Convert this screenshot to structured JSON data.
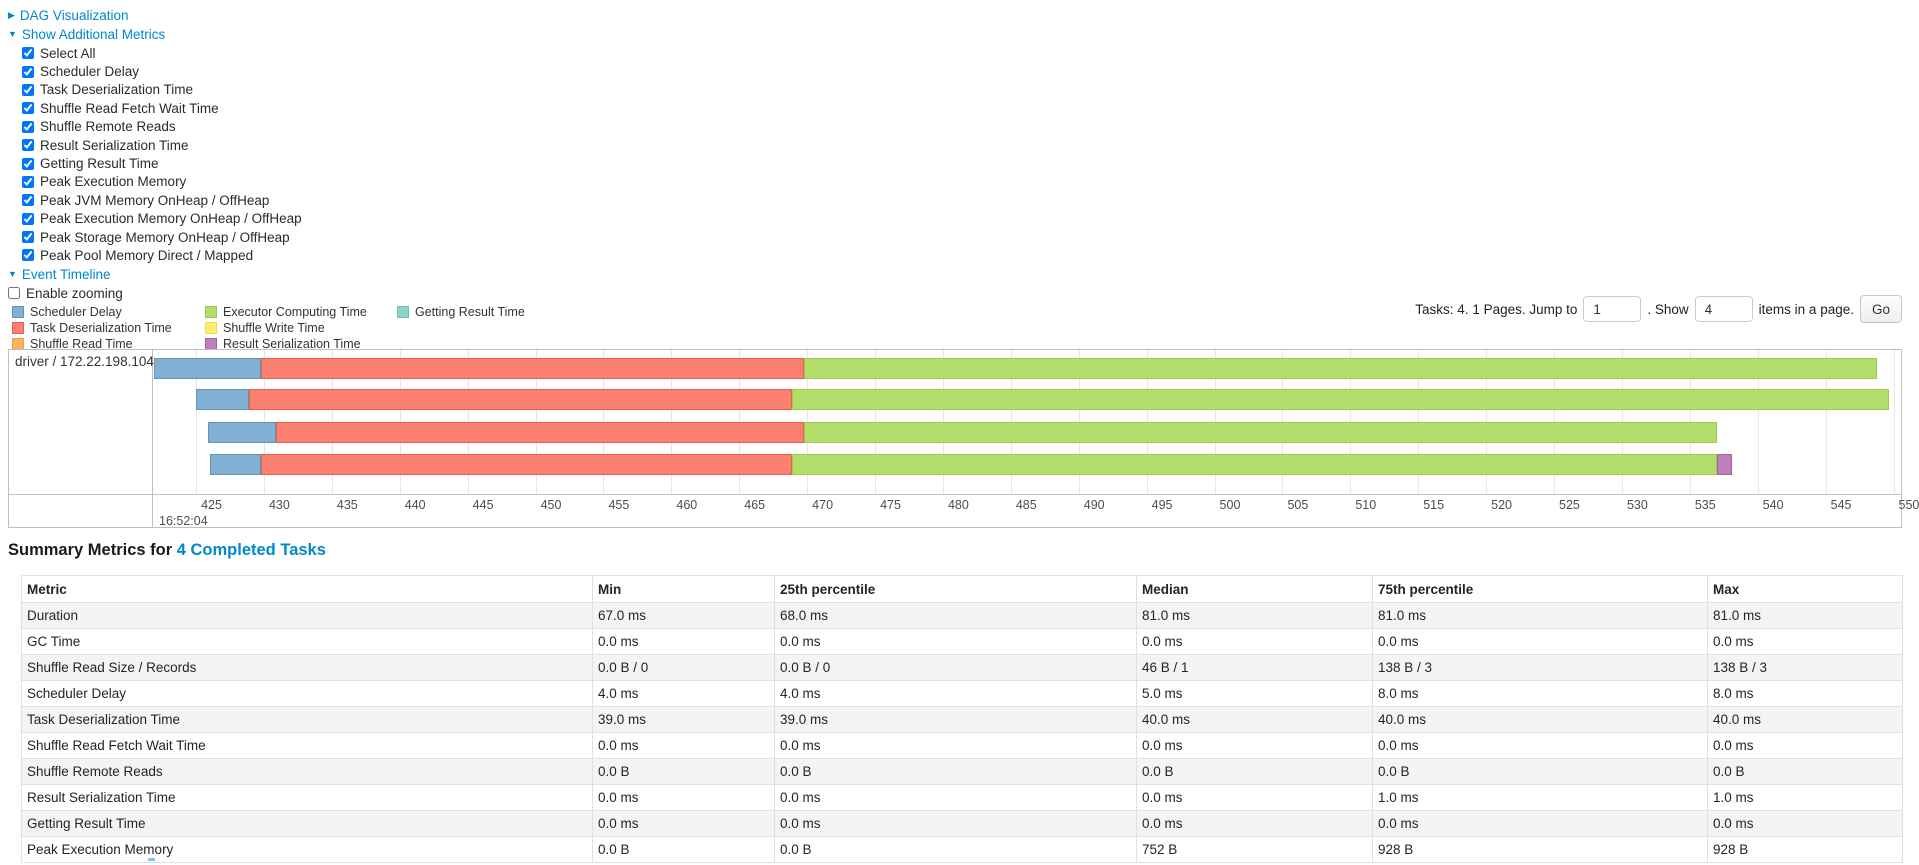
{
  "controls": {
    "dag": {
      "label": "DAG Visualization",
      "arrow": "▶"
    },
    "metrics_toggle": {
      "label": "Show Additional Metrics",
      "arrow": "▼"
    },
    "metric_checkboxes": [
      {
        "label": "Select All",
        "checked": true
      },
      {
        "label": "Scheduler Delay",
        "checked": true
      },
      {
        "label": "Task Deserialization Time",
        "checked": true
      },
      {
        "label": "Shuffle Read Fetch Wait Time",
        "checked": true
      },
      {
        "label": "Shuffle Remote Reads",
        "checked": true
      },
      {
        "label": "Result Serialization Time",
        "checked": true
      },
      {
        "label": "Getting Result Time",
        "checked": true
      },
      {
        "label": "Peak Execution Memory",
        "checked": true
      },
      {
        "label": "Peak JVM Memory OnHeap / OffHeap",
        "checked": true
      },
      {
        "label": "Peak Execution Memory OnHeap / OffHeap",
        "checked": true
      },
      {
        "label": "Peak Storage Memory OnHeap / OffHeap",
        "checked": true
      },
      {
        "label": "Peak Pool Memory Direct / Mapped",
        "checked": true
      }
    ],
    "event_timeline_toggle": {
      "label": "Event Timeline",
      "arrow": "▼"
    },
    "enable_zooming": {
      "label": "Enable zooming",
      "checked": false
    }
  },
  "legend": {
    "items": [
      {
        "type": "scheduler_delay",
        "label": "Scheduler Delay"
      },
      {
        "type": "deserialization",
        "label": "Task Deserialization Time"
      },
      {
        "type": "shuffle_read",
        "label": "Shuffle Read Time"
      },
      {
        "type": "computing",
        "label": "Executor Computing Time"
      },
      {
        "type": "shuffle_write",
        "label": "Shuffle Write Time"
      },
      {
        "type": "result_serialization",
        "label": "Result Serialization Time"
      },
      {
        "type": "getting_result",
        "label": "Getting Result Time"
      }
    ]
  },
  "pagination": {
    "prefix": "Tasks: 4. 1 Pages. Jump to",
    "jump_value": "1",
    "mid": ". Show",
    "show_value": "4",
    "suffix": "items in a page.",
    "go_label": "Go"
  },
  "timeline": {
    "group_label": "driver / 172.22.198.104",
    "colors": {
      "scheduler_delay": {
        "fill": "#80B1D3",
        "border": "#6294BC"
      },
      "deserialization": {
        "fill": "#FB8072",
        "border": "#E9604F"
      },
      "shuffle_read": {
        "fill": "#FDB462",
        "border": "#EB9F42"
      },
      "computing": {
        "fill": "#B3DE69",
        "border": "#9BCC4B"
      },
      "shuffle_write": {
        "fill": "#FFED6F",
        "border": "#EDD94E"
      },
      "result_serialization": {
        "fill": "#BC80BD",
        "border": "#A663A8"
      },
      "getting_result": {
        "fill": "#8DD3C7",
        "border": "#70C0B1"
      }
    },
    "axis": {
      "domain_start": 421.9,
      "domain_end": 550.55,
      "tick_start": 425,
      "tick_end": 550,
      "tick_step": 5,
      "major_label": "16:52:04"
    },
    "tasks": [
      {
        "segments": [
          {
            "type": "scheduler_delay",
            "start": 421.9,
            "end": 429.8
          },
          {
            "type": "deserialization",
            "start": 429.8,
            "end": 469.8
          },
          {
            "type": "computing",
            "start": 469.8,
            "end": 548.8
          }
        ]
      },
      {
        "segments": [
          {
            "type": "scheduler_delay",
            "start": 425.0,
            "end": 428.9
          },
          {
            "type": "deserialization",
            "start": 428.9,
            "end": 468.9
          },
          {
            "type": "computing",
            "start": 468.9,
            "end": 549.7
          }
        ]
      },
      {
        "segments": [
          {
            "type": "scheduler_delay",
            "start": 425.9,
            "end": 430.9
          },
          {
            "type": "deserialization",
            "start": 430.9,
            "end": 469.8
          },
          {
            "type": "computing",
            "start": 469.8,
            "end": 537.0
          }
        ]
      },
      {
        "segments": [
          {
            "type": "scheduler_delay",
            "start": 426.0,
            "end": 429.8
          },
          {
            "type": "deserialization",
            "start": 429.8,
            "end": 468.9
          },
          {
            "type": "computing",
            "start": 468.9,
            "end": 537.0
          },
          {
            "type": "result_serialization",
            "start": 537.0,
            "end": 538.1
          }
        ]
      }
    ]
  },
  "summary": {
    "title_prefix": "Summary Metrics for ",
    "title_link": "4 Completed Tasks"
  },
  "metrics_table": {
    "columns": [
      "Metric",
      "Min",
      "25th percentile",
      "Median",
      "75th percentile",
      "Max"
    ],
    "rows": [
      [
        "Duration",
        "67.0 ms",
        "68.0 ms",
        "81.0 ms",
        "81.0 ms",
        "81.0 ms"
      ],
      [
        "GC Time",
        "0.0 ms",
        "0.0 ms",
        "0.0 ms",
        "0.0 ms",
        "0.0 ms"
      ],
      [
        "Shuffle Read Size / Records",
        "0.0 B / 0",
        "0.0 B / 0",
        "46 B / 1",
        "138 B / 3",
        "138 B / 3"
      ],
      [
        "Scheduler Delay",
        "4.0 ms",
        "4.0 ms",
        "5.0 ms",
        "8.0 ms",
        "8.0 ms"
      ],
      [
        "Task Deserialization Time",
        "39.0 ms",
        "39.0 ms",
        "40.0 ms",
        "40.0 ms",
        "40.0 ms"
      ],
      [
        "Shuffle Read Fetch Wait Time",
        "0.0 ms",
        "0.0 ms",
        "0.0 ms",
        "0.0 ms",
        "0.0 ms"
      ],
      [
        "Shuffle Remote Reads",
        "0.0 B",
        "0.0 B",
        "0.0 B",
        "0.0 B",
        "0.0 B"
      ],
      [
        "Result Serialization Time",
        "0.0 ms",
        "0.0 ms",
        "0.0 ms",
        "1.0 ms",
        "1.0 ms"
      ],
      [
        "Getting Result Time",
        "0.0 ms",
        "0.0 ms",
        "0.0 ms",
        "0.0 ms",
        "0.0 ms"
      ],
      [
        "Peak Execution Memory",
        "0.0 B",
        "0.0 B",
        "752 B",
        "928 B",
        "928 B"
      ]
    ]
  }
}
